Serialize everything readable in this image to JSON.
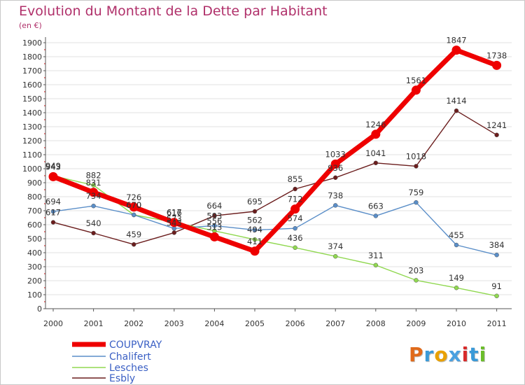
{
  "title": "Evolution du Montant de la Dette par Habitant",
  "subtitle": "(en €)",
  "logo_text": "Proxiti",
  "chart_data": {
    "type": "line",
    "title": "Evolution du Montant de la Dette par Habitant",
    "ylabel": "(en €)",
    "xlabel": "",
    "x": [
      "2000",
      "2001",
      "2002",
      "2003",
      "2004",
      "2005",
      "2006",
      "2007",
      "2008",
      "2009",
      "2010",
      "2011"
    ],
    "ylim": [
      0,
      1900
    ],
    "ytick_step": 100,
    "y_ticks": [
      "0",
      "100",
      "200",
      "300",
      "400",
      "500",
      "600",
      "700",
      "800",
      "900",
      "1000",
      "1100",
      "1200",
      "1300",
      "1400",
      "1500",
      "1600",
      "1700",
      "1800",
      "1900"
    ],
    "grid": "horizontal",
    "legend_position": "bottom-left",
    "series": [
      {
        "name": "COUPVRAY",
        "color": "#ee0000",
        "values": [
          943,
          831,
          726,
          616,
          513,
          411,
          712,
          1033,
          1246,
          1561,
          1847,
          1738
        ],
        "labels": [
          "943",
          "831",
          "726",
          "616",
          "513",
          "411",
          "712",
          "1033",
          "1246",
          "1561",
          "1847",
          "1738"
        ]
      },
      {
        "name": "Chalifert",
        "color": "#5a8ec8",
        "values": [
          694,
          734,
          670,
          573,
          593,
          562,
          574,
          738,
          663,
          759,
          455,
          384
        ],
        "labels": [
          "694",
          "734",
          "670",
          "573",
          "593",
          "562",
          "574",
          "738",
          "663",
          "759",
          "455",
          "384"
        ]
      },
      {
        "name": "Lesches",
        "color": "#90d850",
        "values": [
          949,
          882,
          670,
          617,
          556,
          494,
          436,
          374,
          311,
          203,
          149,
          91
        ],
        "labels": [
          "949",
          "882",
          "670",
          "617",
          "556",
          "494",
          "436",
          "374",
          "311",
          "203",
          "149",
          "91"
        ]
      },
      {
        "name": "Esbly",
        "color": "#6b1d1d",
        "values": [
          617,
          540,
          459,
          543,
          664,
          695,
          855,
          936,
          1041,
          1018,
          1414,
          1241
        ],
        "labels": [
          "617",
          "540",
          "459",
          "543",
          "664",
          "695",
          "855",
          "936",
          "1041",
          "1018",
          "1414",
          "1241"
        ]
      }
    ]
  }
}
